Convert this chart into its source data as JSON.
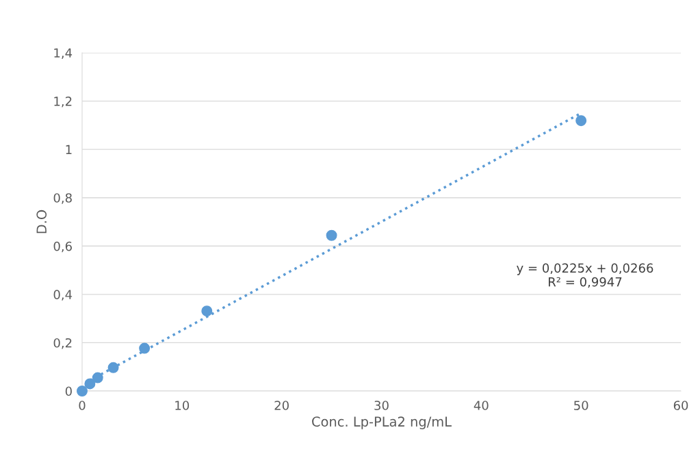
{
  "chart_data": {
    "type": "scatter",
    "xlabel": "Conc. Lp-PLa2 ng/mL",
    "ylabel": "D.O",
    "series": [
      {
        "color": "#5b9bd5",
        "x": [
          0,
          0.78,
          1.56,
          3.125,
          6.25,
          12.5,
          25,
          50
        ],
        "values": [
          0.0,
          0.03,
          0.055,
          0.097,
          0.177,
          0.331,
          0.644,
          1.119
        ],
        "marker": "circle"
      },
      {
        "type": "line",
        "color": "#5b9bd5",
        "x": [
          0.78,
          50
        ],
        "values": [
          0.044,
          1.15
        ],
        "line_style": "dotted"
      }
    ],
    "xlim": [
      0,
      60
    ],
    "xticks": [
      0,
      10,
      20,
      30,
      40,
      50,
      60
    ],
    "ylim": [
      0,
      1.4
    ],
    "yticks": [
      {
        "value": 0,
        "label": "0"
      },
      {
        "value": 0.2,
        "label": "0,2"
      },
      {
        "value": 0.4,
        "label": "0,4"
      },
      {
        "value": 0.6,
        "label": "0,6"
      },
      {
        "value": 0.8,
        "label": "0,8"
      },
      {
        "value": 1,
        "label": "1"
      },
      {
        "value": 1.2,
        "label": "1,2"
      },
      {
        "value": 1.4,
        "label": "1,4"
      }
    ],
    "grid": "y",
    "legend": false,
    "annotations": [
      "y = 0,0225x + 0,0266\nR² = 0,9947"
    ]
  }
}
